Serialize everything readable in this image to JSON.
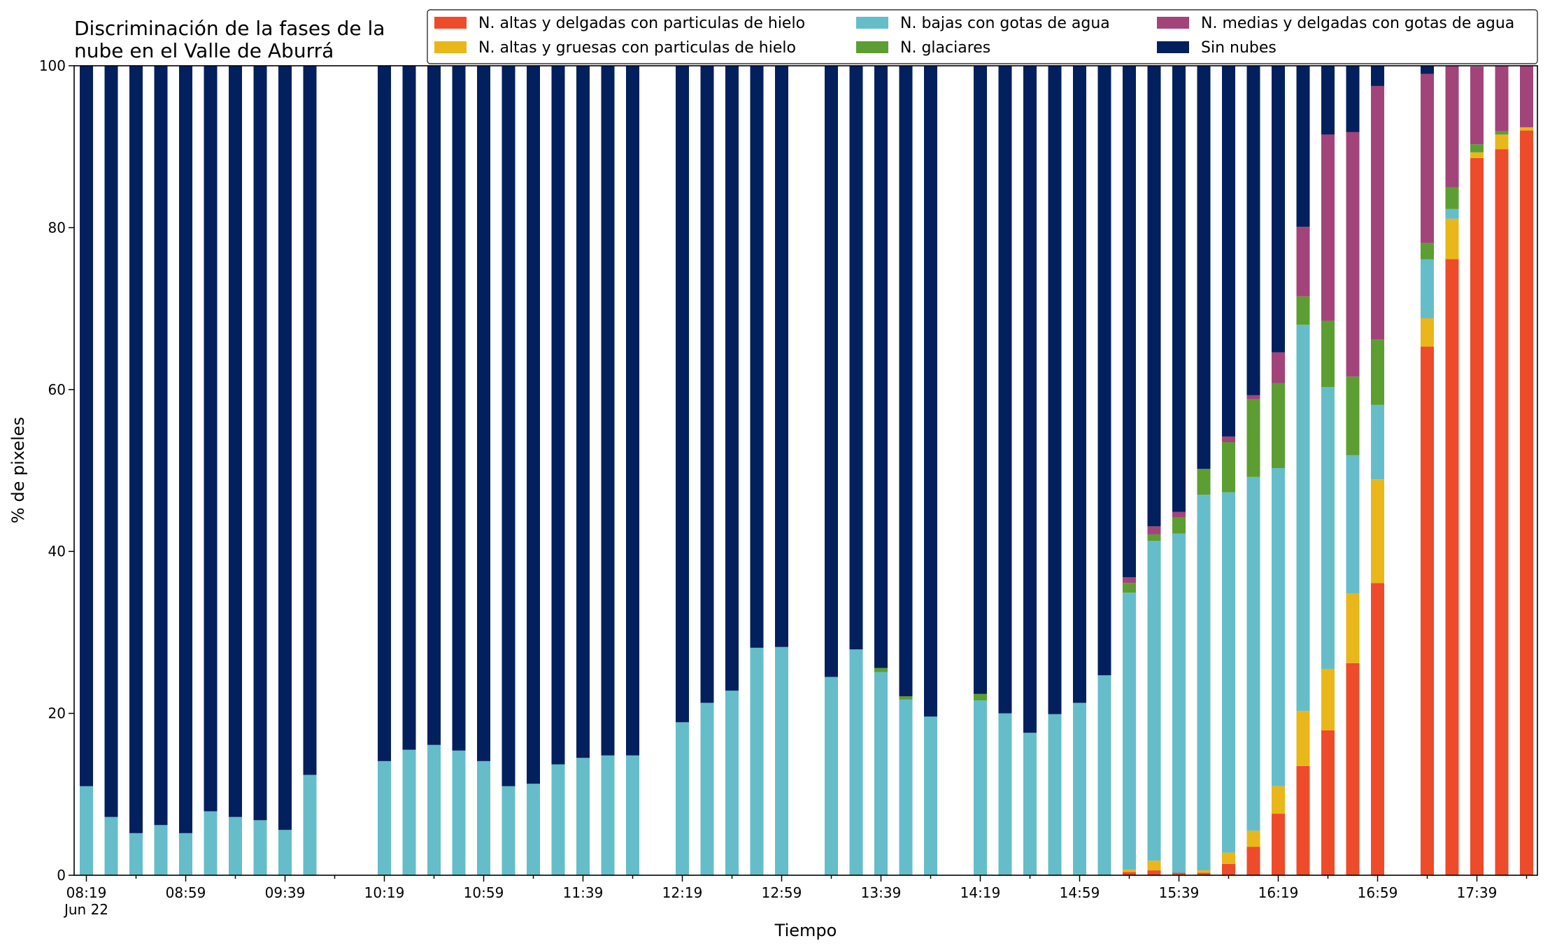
{
  "chart_data": {
    "type": "bar",
    "stacked": true,
    "title": "Discriminación de la fases de la nube en el Valle de Aburrá",
    "title_lines": [
      "Discriminación de la fases de la",
      "nube en el Valle de Aburrá"
    ],
    "xlabel": "Tiempo",
    "ylabel": "% de pixeles",
    "ylim": [
      0,
      100
    ],
    "yticks": [
      0,
      20,
      40,
      60,
      80,
      100
    ],
    "xtick_labels": [
      "08:19",
      "08:59",
      "09:39",
      "10:19",
      "10:59",
      "11:39",
      "12:19",
      "12:59",
      "13:39",
      "14:19",
      "14:59",
      "15:39",
      "16:19",
      "16:59",
      "17:39"
    ],
    "xtick_sublabel": "Jun 22",
    "slot_interval_minutes": 10,
    "grid": false,
    "legend_position": "top-right",
    "legend_columns": 3,
    "series": [
      {
        "name": "N. altas y delgadas con particulas de hielo",
        "color": "#ee4b2b",
        "values": [
          0,
          0,
          0,
          0,
          0,
          0,
          0,
          0,
          0,
          0,
          null,
          null,
          0,
          0,
          0,
          0,
          0,
          0,
          0,
          0,
          0,
          0,
          0,
          null,
          0,
          0,
          0,
          0,
          0,
          null,
          0,
          0,
          0,
          0,
          0,
          null,
          0,
          0,
          0,
          0,
          0,
          0,
          0.4,
          0.6,
          0.3,
          0.3,
          1.4,
          3.5,
          7.6,
          13.5,
          17.9,
          26.2,
          36.1,
          null,
          65.3,
          76.1,
          88.6,
          89.7,
          92.0
        ]
      },
      {
        "name": "N. altas y gruesas con particulas de hielo",
        "color": "#e9b71a",
        "values": [
          0,
          0,
          0,
          0,
          0,
          0,
          0,
          0,
          0,
          0,
          null,
          null,
          0,
          0,
          0,
          0,
          0,
          0,
          0,
          0,
          0,
          0,
          0,
          null,
          0,
          0,
          0,
          0,
          0,
          null,
          0,
          0,
          0,
          0,
          0,
          null,
          0,
          0,
          0,
          0,
          0,
          0,
          0.3,
          1.2,
          0,
          0.3,
          1.4,
          2.0,
          3.4,
          6.8,
          7.6,
          8.6,
          12.8,
          null,
          3.5,
          5.0,
          0.7,
          1.8,
          0.4
        ]
      },
      {
        "name": "N. bajas con gotas de agua",
        "color": "#65bdca",
        "values": [
          11.0,
          7.2,
          5.2,
          6.2,
          5.2,
          7.9,
          7.2,
          6.8,
          5.6,
          12.4,
          null,
          null,
          14.1,
          15.5,
          16.1,
          15.4,
          14.1,
          11.0,
          11.3,
          13.7,
          14.5,
          14.8,
          14.8,
          null,
          18.9,
          21.3,
          22.8,
          28.1,
          28.2,
          null,
          24.5,
          27.9,
          25.1,
          21.7,
          19.6,
          null,
          21.6,
          20.0,
          17.6,
          19.9,
          21.3,
          24.7,
          34.2,
          39.5,
          41.9,
          46.4,
          44.5,
          43.7,
          39.3,
          47.7,
          34.8,
          17.1,
          9.2,
          null,
          7.3,
          1.2,
          0,
          0,
          0
        ]
      },
      {
        "name": "N. glaciares",
        "color": "#5c9e31",
        "values": [
          0,
          0,
          0,
          0,
          0,
          0,
          0,
          0,
          0,
          0,
          null,
          null,
          0,
          0,
          0,
          0,
          0,
          0,
          0,
          0,
          0,
          0,
          0,
          null,
          0,
          0,
          0,
          0,
          0,
          null,
          0,
          0,
          0.5,
          0.4,
          0,
          null,
          0.8,
          0,
          0,
          0,
          0,
          0,
          1.2,
          0.8,
          2.0,
          3.2,
          6.2,
          9.6,
          10.5,
          3.5,
          8.2,
          9.7,
          8.1,
          null,
          2.0,
          2.7,
          1.0,
          0.4,
          0
        ]
      },
      {
        "name": "N. medias y delgadas con gotas de agua",
        "color": "#a2447a",
        "values": [
          0,
          0,
          0,
          0,
          0,
          0,
          0,
          0,
          0,
          0,
          null,
          null,
          0,
          0,
          0,
          0,
          0,
          0,
          0,
          0,
          0,
          0,
          0,
          null,
          0,
          0,
          0,
          0,
          0,
          null,
          0,
          0,
          0,
          0,
          0,
          null,
          0,
          0,
          0,
          0,
          0,
          0,
          0.7,
          1.0,
          0.7,
          0,
          0.7,
          0.5,
          3.8,
          8.6,
          23.0,
          30.2,
          31.3,
          null,
          20.9,
          15.0,
          9.6,
          8.1,
          7.6
        ]
      },
      {
        "name": "Sin nubes",
        "color": "#02205d",
        "values": [
          89.0,
          92.8,
          94.8,
          93.8,
          94.8,
          92.1,
          92.8,
          93.2,
          94.4,
          87.6,
          null,
          null,
          85.9,
          84.5,
          83.9,
          84.6,
          85.9,
          89.0,
          88.7,
          86.3,
          85.5,
          85.2,
          85.2,
          null,
          81.1,
          78.7,
          77.2,
          71.9,
          71.8,
          null,
          75.5,
          72.1,
          74.4,
          77.9,
          80.4,
          null,
          77.6,
          80.0,
          82.4,
          80.1,
          78.7,
          75.3,
          63.2,
          57.0,
          55.1,
          49.8,
          45.8,
          40.8,
          35.4,
          19.9,
          8.5,
          8.2,
          2.5,
          null,
          1.0,
          0,
          0,
          0,
          0
        ]
      }
    ]
  }
}
